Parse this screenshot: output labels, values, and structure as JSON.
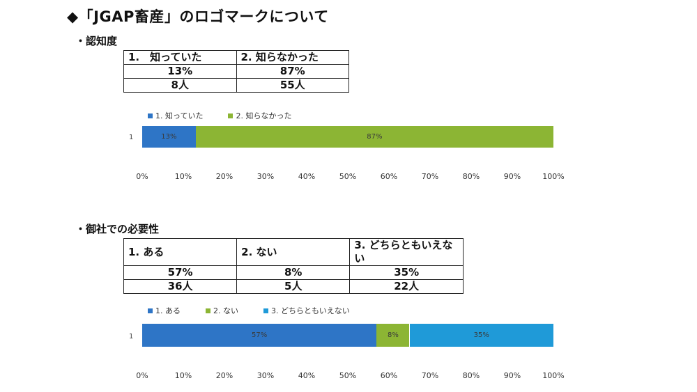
{
  "title": "◆「JGAP畜産」のロゴマークについて",
  "sections": [
    {
      "label": "・認知度",
      "table": {
        "headers": [
          "1.　知っていた",
          "2.  知らなかった"
        ],
        "percents": [
          "13%",
          "87%"
        ],
        "counts": [
          "8人",
          "55人"
        ]
      }
    },
    {
      "label": "・御社での必要性",
      "table": {
        "headers": [
          "1.  ある",
          "2.  ない",
          "3.  どちらともいえない"
        ],
        "percents": [
          "57%",
          "8%",
          "35%"
        ],
        "counts": [
          "36人",
          "5人",
          "22人"
        ]
      }
    }
  ],
  "chart_data": [
    {
      "type": "bar",
      "orientation": "horizontal",
      "stacked": true,
      "categories": [
        "1"
      ],
      "series": [
        {
          "name": "1.  知っていた",
          "values": [
            13
          ],
          "label": "13%",
          "color": "#2e75c6"
        },
        {
          "name": "2.  知らなかった",
          "values": [
            87
          ],
          "label": "87%",
          "color": "#8cb534"
        }
      ],
      "xlim": [
        0,
        100
      ],
      "xticks": [
        "0%",
        "10%",
        "20%",
        "30%",
        "40%",
        "50%",
        "60%",
        "70%",
        "80%",
        "90%",
        "100%"
      ],
      "legend": "top-left"
    },
    {
      "type": "bar",
      "orientation": "horizontal",
      "stacked": true,
      "categories": [
        "1"
      ],
      "series": [
        {
          "name": "1.  ある",
          "values": [
            57
          ],
          "label": "57%",
          "color": "#2e75c6"
        },
        {
          "name": "2.  ない",
          "values": [
            8
          ],
          "label": "8%",
          "color": "#8cb534"
        },
        {
          "name": "3.  どちらともいえない",
          "values": [
            35
          ],
          "label": "35%",
          "color": "#1f9ad8"
        }
      ],
      "xlim": [
        0,
        100
      ],
      "xticks": [
        "0%",
        "10%",
        "20%",
        "30%",
        "40%",
        "50%",
        "60%",
        "70%",
        "80%",
        "90%",
        "100%"
      ],
      "legend": "top-left"
    }
  ]
}
